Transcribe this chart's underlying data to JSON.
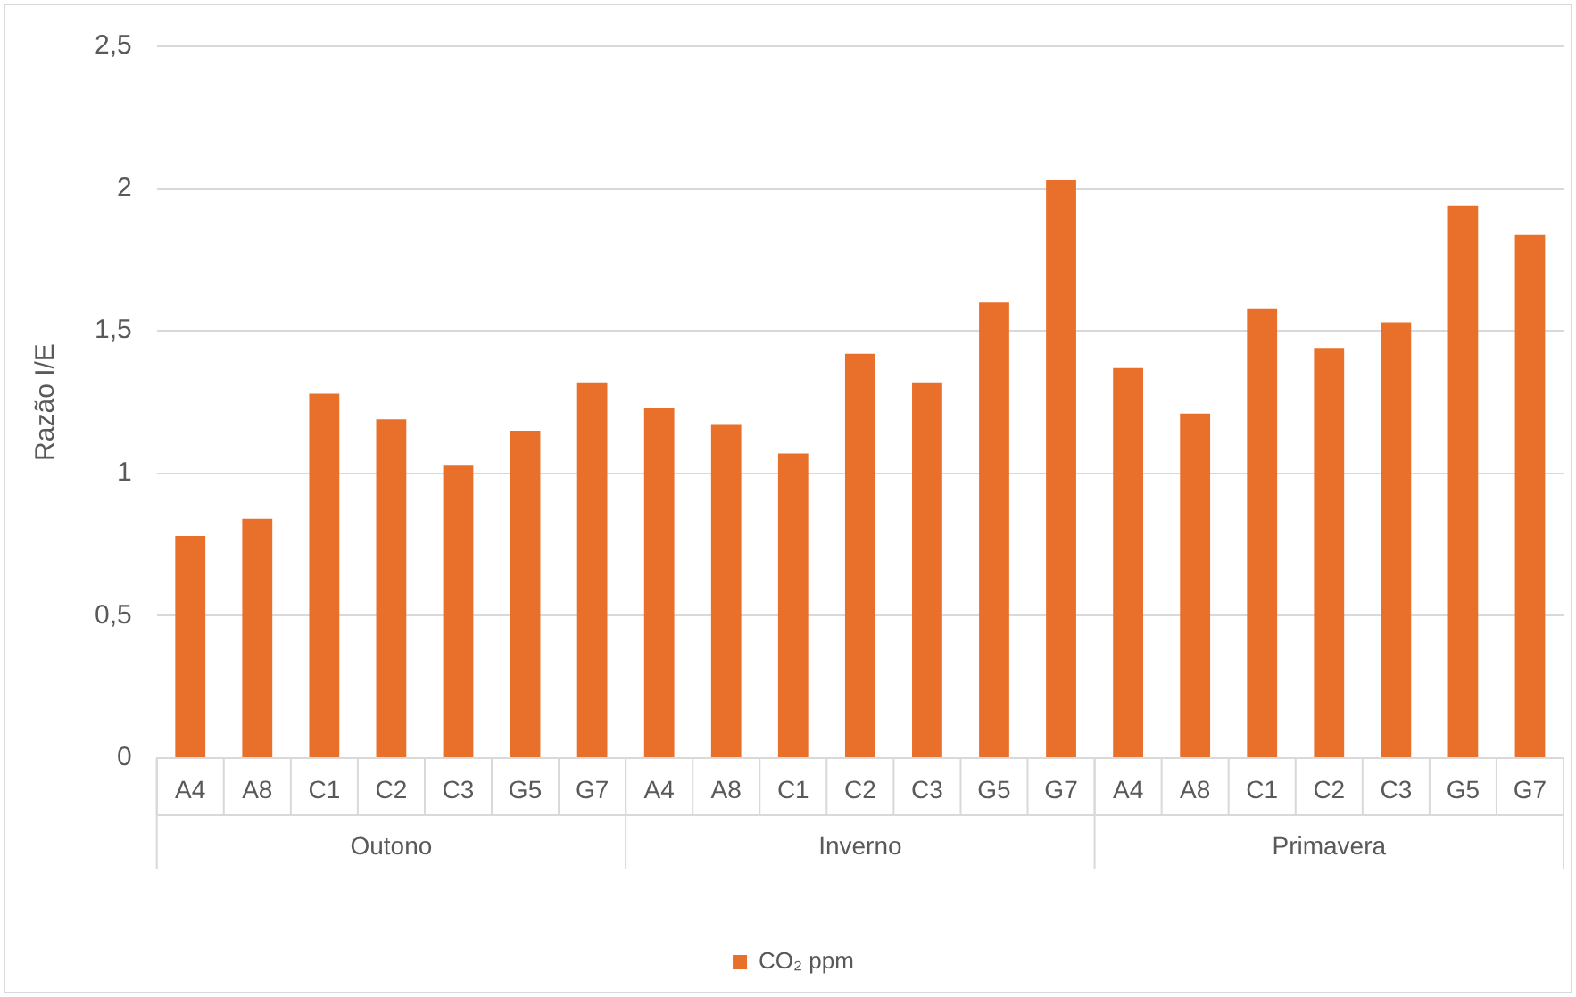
{
  "chart_data": {
    "type": "bar",
    "ylabel": "Razão I/E",
    "categories": [
      "A4",
      "A8",
      "C1",
      "C2",
      "C3",
      "G5",
      "G7",
      "A4",
      "A8",
      "C1",
      "C2",
      "C3",
      "G5",
      "G7",
      "A4",
      "A8",
      "C1",
      "C2",
      "C3",
      "G5",
      "G7"
    ],
    "series": [
      {
        "name": "CO₂ ppm",
        "color": "#e8702a",
        "values": [
          0.78,
          0.84,
          1.28,
          1.19,
          1.03,
          1.15,
          1.32,
          1.23,
          1.17,
          1.07,
          1.42,
          1.32,
          1.6,
          2.03,
          1.37,
          1.21,
          1.58,
          1.44,
          1.53,
          1.94,
          1.84
        ]
      }
    ],
    "annotations": [
      "Outono",
      "Inverno",
      "Primavera"
    ],
    "ylim": [
      0,
      2.5
    ],
    "yticks": [
      {
        "value": 0,
        "label": "0"
      },
      {
        "value": 0.5,
        "label": "0,5"
      },
      {
        "value": 1,
        "label": "1"
      },
      {
        "value": 1.5,
        "label": "1,5"
      },
      {
        "value": 2,
        "label": "2"
      },
      {
        "value": 2.5,
        "label": "2,5"
      }
    ],
    "grid": "y",
    "legend": "bottom"
  }
}
